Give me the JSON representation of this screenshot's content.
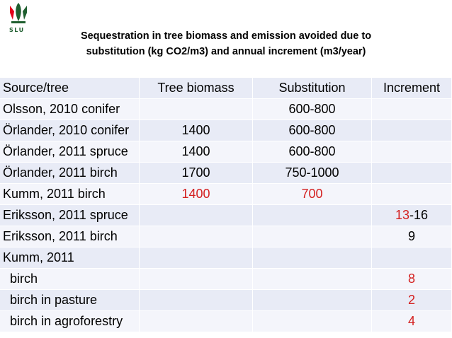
{
  "logo": {
    "text": "SLU",
    "icon": "crown-leaf-icon",
    "color": "#1f5f2f"
  },
  "title": {
    "line1": "Sequestration in tree biomass and emission avoided due to",
    "line2": "substitution (kg CO2/m3) and annual increment (m3/year)"
  },
  "colors": {
    "highlight": "#d42020",
    "row_band_1": "#e8ebf6",
    "row_band_2": "#f4f5fb"
  },
  "table": {
    "headers": [
      "Source/tree",
      "Tree biomass",
      "Substitution",
      "Increment"
    ],
    "rows": [
      {
        "source": "Olsson, 2010 conifer",
        "biomass": "",
        "substitution": "600-800",
        "increment_a": "",
        "increment_b": ""
      },
      {
        "source": "Örlander, 2010 conifer",
        "biomass": "1400",
        "substitution": "600-800",
        "increment_a": "",
        "increment_b": ""
      },
      {
        "source": "Örlander, 2011 spruce",
        "biomass": "1400",
        "substitution": "600-800",
        "increment_a": "",
        "increment_b": ""
      },
      {
        "source": "Örlander, 2011 birch",
        "biomass": "1700",
        "substitution": "750-1000",
        "increment_a": "",
        "increment_b": ""
      },
      {
        "source": "Kumm, 2011 birch",
        "biomass": "1400",
        "substitution": "700",
        "increment_a": "",
        "increment_b": ""
      },
      {
        "source": "Eriksson, 2011 spruce",
        "biomass": "",
        "substitution": "",
        "increment_a": "13",
        "increment_b": "-16"
      },
      {
        "source": "Eriksson, 2011 birch",
        "biomass": "",
        "substitution": "",
        "increment_a": "",
        "increment_b": "9"
      },
      {
        "source": "Kumm, 2011",
        "biomass": "",
        "substitution": "",
        "increment_a": "",
        "increment_b": ""
      },
      {
        "source": "birch",
        "biomass": "",
        "substitution": "",
        "increment_a": "8",
        "increment_b": ""
      },
      {
        "source": "birch in pasture",
        "biomass": "",
        "substitution": "",
        "increment_a": "2",
        "increment_b": ""
      },
      {
        "source": "birch in agroforestry",
        "biomass": "",
        "substitution": "",
        "increment_a": "4",
        "increment_b": ""
      }
    ]
  }
}
